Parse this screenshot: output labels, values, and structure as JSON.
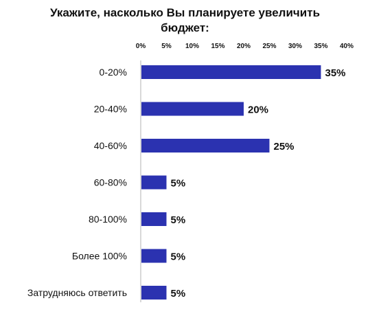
{
  "chart_data": {
    "type": "bar",
    "orientation": "horizontal",
    "title_lines": [
      "Укажите, насколько Вы планируете увеличить",
      "бюджет:"
    ],
    "categories": [
      "0-20%",
      "20-40%",
      "40-60%",
      "60-80%",
      "80-100%",
      "Более 100%",
      "Затрудняюсь ответить"
    ],
    "values": [
      35,
      20,
      25,
      5,
      5,
      5,
      5
    ],
    "value_labels": [
      "35%",
      "20%",
      "25%",
      "5%",
      "5%",
      "5%",
      "5%"
    ],
    "x_ticks": [
      0,
      5,
      10,
      15,
      20,
      25,
      30,
      35,
      40
    ],
    "x_tick_labels": [
      "0%",
      "5%",
      "10%",
      "15%",
      "20%",
      "25%",
      "30%",
      "35%",
      "40%"
    ],
    "xlim": [
      0,
      40
    ],
    "bar_color": "#2b32b0",
    "axis_color": "#cccccc",
    "grid": false
  }
}
